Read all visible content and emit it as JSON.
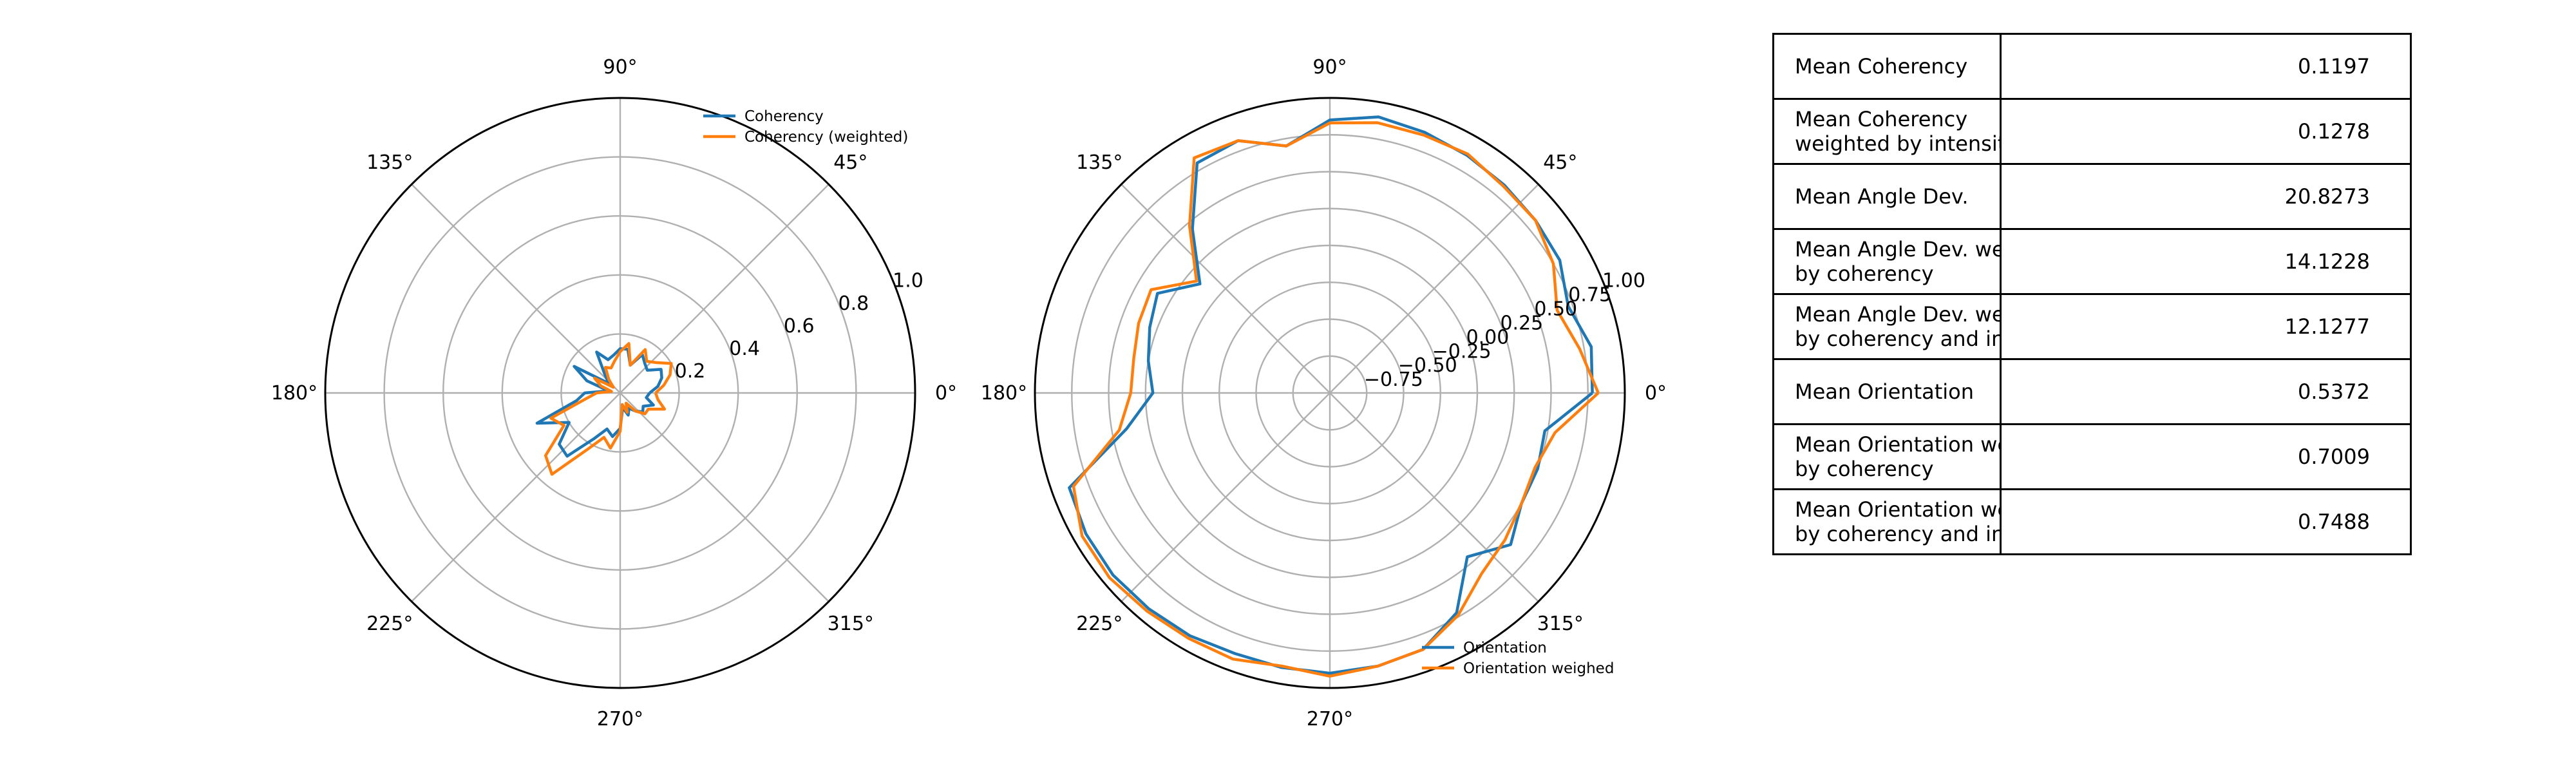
{
  "chart_data": [
    {
      "type": "line",
      "projection": "polar",
      "theta_unit": "degrees",
      "theta_ticks": [
        "0°",
        "45°",
        "90°",
        "135°",
        "180°",
        "225°",
        "270°",
        "315°"
      ],
      "r_ticks": [
        "0.2",
        "0.4",
        "0.6",
        "0.8",
        "1.0"
      ],
      "rlim": [
        0,
        1.0
      ],
      "grid": true,
      "legend_position": "top-right",
      "series": [
        {
          "name": "Coherency",
          "color": "#1f77b4",
          "theta": [
            0,
            10,
            20,
            30,
            40,
            50,
            60,
            70,
            80,
            90,
            100,
            110,
            120,
            130,
            140,
            150,
            160,
            170,
            180,
            190,
            200,
            210,
            220,
            230,
            240,
            250,
            260,
            270,
            280,
            290,
            300,
            310,
            320,
            330,
            340,
            350,
            360
          ],
          "r": [
            0.1,
            0.13,
            0.15,
            0.16,
            0.12,
            0.13,
            0.15,
            0.1,
            0.15,
            0.15,
            0.13,
            0.12,
            0.16,
            0.08,
            0.05,
            0.18,
            0.12,
            0.04,
            0.12,
            0.15,
            0.3,
            0.2,
            0.27,
            0.28,
            0.18,
            0.13,
            0.15,
            0.12,
            0.05,
            0.08,
            0.06,
            0.08,
            0.1,
            0.09,
            0.12,
            0.09,
            0.1
          ]
        },
        {
          "name": "Coherency (weighted)",
          "color": "#ff7f0e",
          "theta": [
            0,
            10,
            20,
            30,
            40,
            50,
            60,
            70,
            80,
            90,
            100,
            110,
            120,
            130,
            140,
            150,
            160,
            170,
            180,
            190,
            200,
            210,
            220,
            230,
            240,
            250,
            260,
            270,
            280,
            290,
            300,
            310,
            320,
            330,
            340,
            350,
            360
          ],
          "r": [
            0.12,
            0.15,
            0.18,
            0.2,
            0.16,
            0.14,
            0.17,
            0.1,
            0.17,
            0.14,
            0.11,
            0.09,
            0.1,
            0.06,
            0.03,
            0.1,
            0.07,
            0.03,
            0.08,
            0.12,
            0.25,
            0.22,
            0.33,
            0.36,
            0.22,
            0.16,
            0.19,
            0.13,
            0.04,
            0.07,
            0.04,
            0.08,
            0.11,
            0.11,
            0.16,
            0.13,
            0.12
          ]
        }
      ]
    },
    {
      "type": "line",
      "projection": "polar",
      "theta_unit": "degrees",
      "theta_ticks": [
        "0°",
        "45°",
        "90°",
        "135°",
        "180°",
        "225°",
        "270°",
        "315°"
      ],
      "r_ticks": [
        "−0.75",
        "−0.50",
        "−0.25",
        "0.00",
        "0.25",
        "0.50",
        "0.75",
        "1.00"
      ],
      "rlim": [
        -1.0,
        1.0
      ],
      "grid": true,
      "legend_position": "bottom-right",
      "series": [
        {
          "name": "Orientation",
          "color": "#1f77b4",
          "theta": [
            0,
            10,
            20,
            30,
            40,
            50,
            60,
            70,
            80,
            90,
            100,
            110,
            120,
            130,
            140,
            150,
            160,
            170,
            180,
            190,
            200,
            210,
            220,
            230,
            240,
            250,
            260,
            270,
            280,
            290,
            300,
            310,
            320,
            330,
            340,
            350,
            360
          ],
          "r": [
            0.78,
            0.8,
            0.72,
            0.8,
            0.82,
            0.84,
            0.86,
            0.88,
            0.9,
            0.85,
            0.7,
            0.82,
            0.8,
            0.45,
            0.15,
            0.35,
            0.3,
            0.25,
            0.2,
            0.4,
            0.88,
            0.91,
            0.92,
            0.91,
            0.9,
            0.88,
            0.89,
            0.9,
            0.88,
            0.85,
            0.72,
            0.45,
            0.6,
            0.5,
            0.5,
            0.48,
            0.78
          ]
        },
        {
          "name": "Orientation weighed",
          "color": "#ff7f0e",
          "theta": [
            0,
            10,
            20,
            30,
            40,
            50,
            60,
            70,
            80,
            90,
            100,
            110,
            120,
            130,
            140,
            150,
            160,
            170,
            180,
            190,
            200,
            210,
            220,
            230,
            240,
            250,
            260,
            270,
            280,
            290,
            300,
            310,
            320,
            330,
            340,
            350,
            360
          ],
          "r": [
            0.82,
            0.72,
            0.64,
            0.75,
            0.82,
            0.83,
            0.87,
            0.86,
            0.86,
            0.83,
            0.7,
            0.82,
            0.84,
            0.48,
            0.18,
            0.4,
            0.38,
            0.35,
            0.35,
            0.45,
            0.85,
            0.94,
            0.95,
            0.93,
            0.92,
            0.92,
            0.88,
            0.92,
            0.88,
            0.85,
            0.74,
            0.6,
            0.55,
            0.5,
            0.48,
            0.55,
            0.82
          ]
        }
      ]
    },
    {
      "type": "table",
      "rows": [
        {
          "label": [
            "Mean Coherency"
          ],
          "value": "0.1197"
        },
        {
          "label": [
            "Mean Coherency",
            "weighted by intensit"
          ],
          "value": "0.1278"
        },
        {
          "label": [
            "Mean Angle Dev."
          ],
          "value": "20.8273"
        },
        {
          "label": [
            "Mean Angle Dev. we",
            "by coherency"
          ],
          "value": "14.1228"
        },
        {
          "label": [
            "Mean Angle Dev. we",
            "by coherency and int"
          ],
          "value": "12.1277"
        },
        {
          "label": [
            "Mean Orientation"
          ],
          "value": "0.5372"
        },
        {
          "label": [
            "Mean Orientation we",
            "by coherency"
          ],
          "value": "0.7009"
        },
        {
          "label": [
            "Mean Orientation we",
            "by coherency and int"
          ],
          "value": "0.7488"
        }
      ]
    }
  ]
}
